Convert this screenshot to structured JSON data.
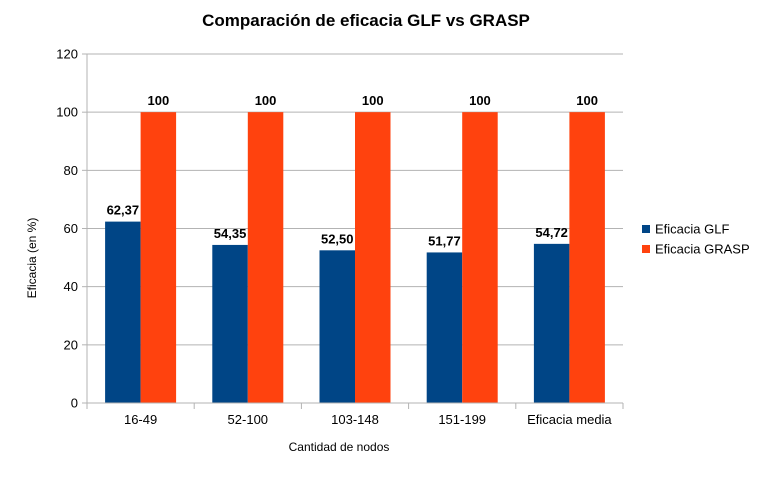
{
  "chart_data": {
    "type": "bar",
    "title": "Comparación de eficacia GLF vs GRASP",
    "xlabel": "Cantidad de nodos",
    "ylabel": "Eficacia (en %)",
    "categories": [
      "16-49",
      "52-100",
      "103-148",
      "151-199",
      "Eficacia media"
    ],
    "series": [
      {
        "name": "Eficacia GLF",
        "values": [
          62.37,
          54.35,
          52.5,
          51.77,
          54.72
        ],
        "labels": [
          "62,37",
          "54,35",
          "52,50",
          "51,77",
          "54,72"
        ],
        "color": "#004586"
      },
      {
        "name": "Eficacia GRASP",
        "values": [
          100,
          100,
          100,
          100,
          100
        ],
        "labels": [
          "100",
          "100",
          "100",
          "100",
          "100"
        ],
        "color": "#ff420e"
      }
    ],
    "ylim": [
      0,
      120
    ],
    "yticks": [
      0,
      20,
      40,
      60,
      80,
      100,
      120
    ],
    "grid": true,
    "legend_position": "right"
  }
}
